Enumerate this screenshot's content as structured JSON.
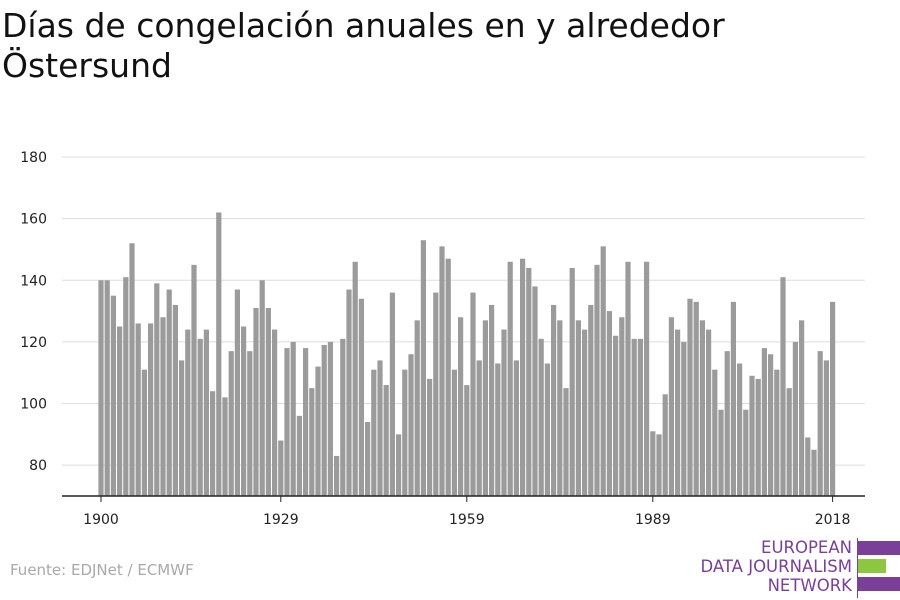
{
  "chart_data": {
    "type": "bar",
    "title": "Días de congelación anuales en y alrededor Östersund",
    "x_start": 1900,
    "x_end": 2018,
    "x_ticks": [
      "1900",
      "1929",
      "1959",
      "1989",
      "2018"
    ],
    "y_ticks": [
      80,
      100,
      120,
      140,
      160,
      180
    ],
    "ylim": [
      70,
      180
    ],
    "grid": true,
    "values": [
      140,
      140,
      135,
      125,
      141,
      152,
      126,
      111,
      126,
      139,
      128,
      137,
      132,
      114,
      124,
      145,
      121,
      124,
      104,
      162,
      102,
      117,
      137,
      125,
      117,
      131,
      140,
      131,
      124,
      88,
      118,
      120,
      96,
      118,
      105,
      112,
      119,
      120,
      83,
      121,
      137,
      146,
      134,
      94,
      111,
      114,
      106,
      136,
      90,
      111,
      116,
      127,
      153,
      108,
      136,
      151,
      147,
      111,
      128,
      106,
      136,
      114,
      127,
      132,
      113,
      124,
      146,
      114,
      147,
      144,
      138,
      121,
      113,
      132,
      127,
      105,
      144,
      127,
      124,
      132,
      145,
      151,
      130,
      122,
      128,
      146,
      121,
      121,
      146,
      91,
      90,
      103,
      128,
      124,
      120,
      134,
      133,
      127,
      124,
      111,
      98,
      117,
      133,
      113,
      98,
      109,
      108,
      118,
      116,
      111,
      141,
      105,
      120,
      127,
      89,
      85,
      117,
      114,
      133
    ],
    "bar_color": "#9b9b9b"
  },
  "source": "Fuente: EDJNet / ECMWF",
  "logo": {
    "lines": [
      "EUROPEAN",
      "DATA JOURNALISM",
      "NETWORK"
    ],
    "colors": [
      "#7a3f98",
      "#8dc63f",
      "#7a3f98"
    ]
  }
}
